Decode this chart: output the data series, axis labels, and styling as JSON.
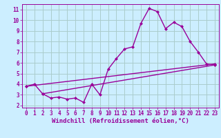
{
  "bg_color": "#cceeff",
  "grid_color": "#aacccc",
  "line_color": "#990099",
  "xlabel": "Windchill (Refroidissement éolien,°C)",
  "xlim": [
    -0.5,
    23.5
  ],
  "ylim": [
    1.8,
    11.5
  ],
  "xticks": [
    0,
    1,
    2,
    3,
    4,
    5,
    6,
    7,
    8,
    9,
    10,
    11,
    12,
    13,
    14,
    15,
    16,
    17,
    18,
    19,
    20,
    21,
    22,
    23
  ],
  "yticks": [
    2,
    3,
    4,
    5,
    6,
    7,
    8,
    9,
    10,
    11
  ],
  "series1_x": [
    0,
    1,
    2,
    3,
    4,
    5,
    6,
    7,
    8,
    9,
    10,
    11,
    12,
    13,
    14,
    15,
    16,
    17,
    18,
    19,
    20,
    21,
    22,
    23
  ],
  "series1_y": [
    3.8,
    4.0,
    3.1,
    2.7,
    2.8,
    2.6,
    2.7,
    2.3,
    4.0,
    3.0,
    5.4,
    6.4,
    7.3,
    7.5,
    9.7,
    11.1,
    10.8,
    9.2,
    9.8,
    9.4,
    8.0,
    7.0,
    5.9,
    5.8
  ],
  "series2_x": [
    0,
    23
  ],
  "series2_y": [
    3.8,
    5.9
  ],
  "series3_x": [
    2,
    23
  ],
  "series3_y": [
    3.1,
    5.8
  ],
  "marker_size": 2.5,
  "line_width": 1.0,
  "tick_fontsize": 5.5,
  "xlabel_fontsize": 6.5
}
